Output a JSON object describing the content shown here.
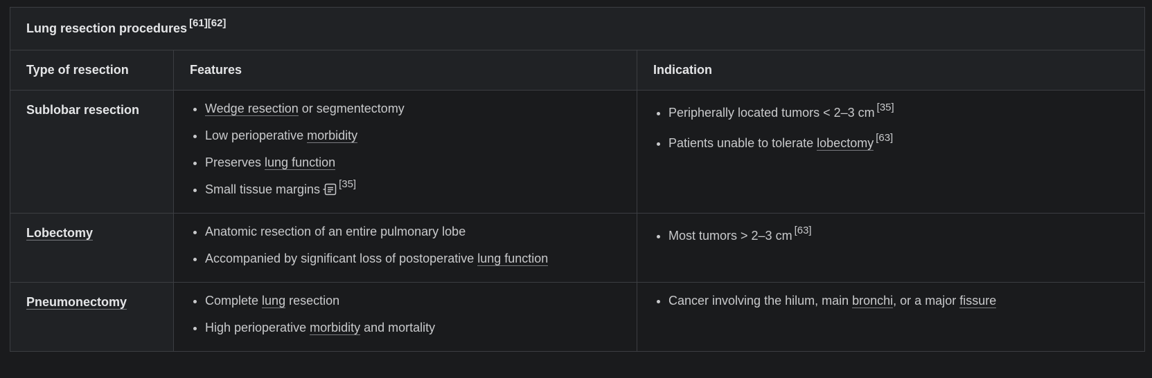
{
  "table": {
    "caption": "Lung resection procedures",
    "caption_refs": "[61][62]",
    "headers": [
      "Type of resection",
      "Features",
      "Indication"
    ],
    "rows": [
      {
        "type": "Sublobar resection",
        "features": [
          {
            "link": "Wedge resection",
            "text": " or segmentectomy"
          },
          {
            "pre": "Low perioperative ",
            "link": "morbidity"
          },
          {
            "pre": "Preserves ",
            "link": "lung function"
          },
          {
            "pre": "Small tissue margins",
            "icon": "note-icon",
            "ref": "[35]"
          }
        ],
        "indications": [
          {
            "pre": "Peripherally located tumors < 2–3 cm",
            "ref": "[35]"
          },
          {
            "pre": "Patients unable to tolerate ",
            "link": "lobectomy",
            "ref": "[63]"
          }
        ]
      },
      {
        "type": "Lobectomy",
        "features": [
          {
            "pre": "Anatomic resection of an entire pulmonary lobe"
          },
          {
            "pre": "Accompanied by significant loss of postoperative ",
            "link": "lung function"
          }
        ],
        "indications": [
          {
            "pre": "Most tumors > 2–3 cm",
            "ref": "[63]"
          }
        ]
      },
      {
        "type": "Pneumonectomy",
        "features": [
          {
            "pre": "Complete ",
            "link": "lung",
            "post": " resection"
          },
          {
            "pre": "High perioperative ",
            "link": "morbidity",
            "post": " and mortality"
          }
        ],
        "indications": [
          {
            "pre": "Cancer involving the hilum, main ",
            "link": "bronchi",
            "mid": ", or a major ",
            "link2": "fissure"
          }
        ]
      }
    ]
  },
  "colors": {
    "background": "#1a1b1d",
    "header_background": "#202225",
    "border": "#3c3e42",
    "text": "#c9cacc",
    "heading_text": "#e4e5e7"
  }
}
